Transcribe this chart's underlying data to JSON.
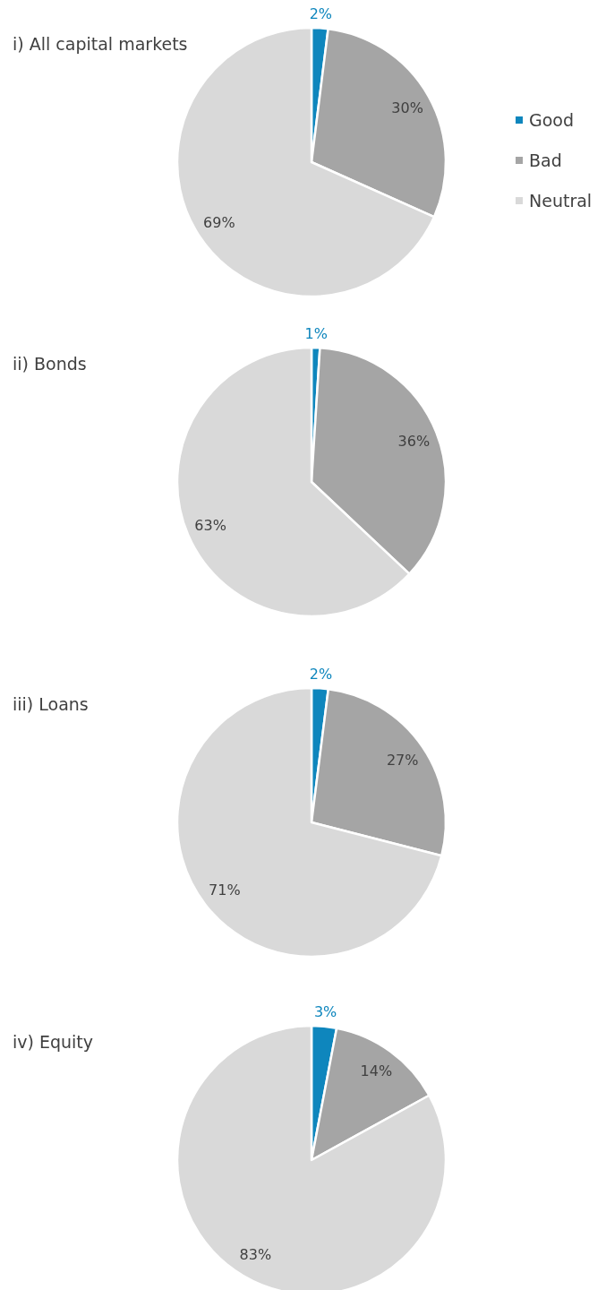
{
  "chart_data": [
    {
      "type": "pie",
      "title": "i) All capital markets",
      "categories": [
        "Good",
        "Bad",
        "Neutral"
      ],
      "values": [
        2,
        30,
        69
      ],
      "value_labels": [
        "2%",
        "30%",
        "69%"
      ],
      "colors": [
        "#0e86bd",
        "#a5a5a5",
        "#d9d9d9"
      ],
      "legend": "right"
    },
    {
      "type": "pie",
      "title": "ii) Bonds",
      "categories": [
        null,
        null,
        null
      ],
      "values": [
        1,
        36,
        63
      ],
      "value_labels": [
        "1%",
        "36%",
        "63%"
      ],
      "colors": [
        "#0e86bd",
        "#a5a5a5",
        "#d9d9d9"
      ]
    },
    {
      "type": "pie",
      "title": "iii) Loans",
      "categories": [
        null,
        null,
        null
      ],
      "values": [
        2,
        27,
        71
      ],
      "value_labels": [
        "2%",
        "27%",
        "71%"
      ],
      "colors": [
        "#0e86bd",
        "#a5a5a5",
        "#d9d9d9"
      ]
    },
    {
      "type": "pie",
      "title": "iv) Equity",
      "categories": [
        null,
        null,
        null
      ],
      "values": [
        3,
        14,
        83
      ],
      "value_labels": [
        "3%",
        "14%",
        "83%"
      ],
      "colors": [
        "#0e86bd",
        "#a5a5a5",
        "#d9d9d9"
      ]
    }
  ]
}
